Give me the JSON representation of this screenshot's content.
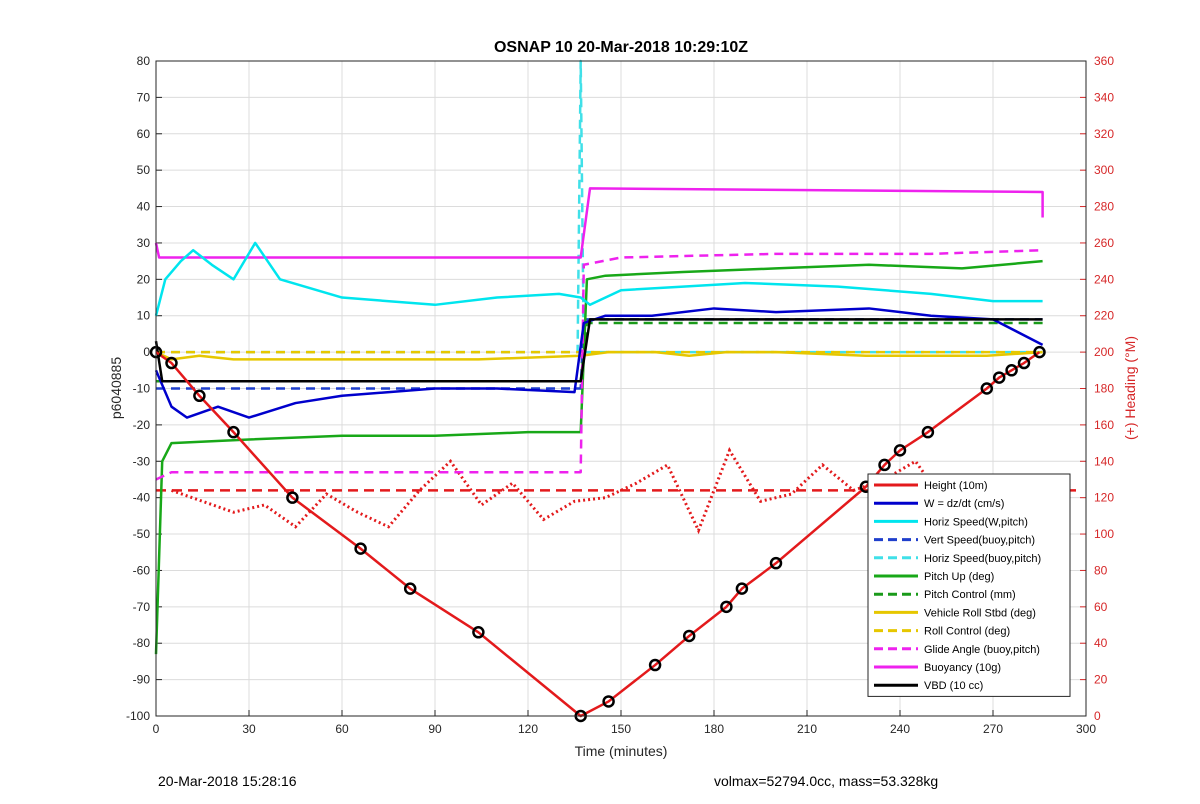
{
  "chart_data": {
    "type": "line",
    "title": "OSNAP 10 20-Mar-2018 10:29:10Z",
    "xlabel": "Time (minutes)",
    "ylabel": "p6040885",
    "y2label": "(+) Heading (°M)",
    "xlim": [
      0,
      300
    ],
    "ylim": [
      -100,
      80
    ],
    "y2lim": [
      0,
      360
    ],
    "xticks": [
      "0",
      "30",
      "60",
      "90",
      "120",
      "150",
      "180",
      "210",
      "240",
      "270",
      "300"
    ],
    "yticks": [
      "-100",
      "-90",
      "-80",
      "-70",
      "-60",
      "-50",
      "-40",
      "-30",
      "-20",
      "-10",
      "0",
      "10",
      "20",
      "30",
      "40",
      "50",
      "60",
      "70",
      "80"
    ],
    "y2ticks": [
      "0",
      "20",
      "40",
      "60",
      "80",
      "100",
      "120",
      "140",
      "160",
      "180",
      "200",
      "220",
      "240",
      "260",
      "280",
      "300",
      "320",
      "340",
      "360"
    ],
    "grid": true,
    "legend_position": "bottom-right",
    "series": [
      {
        "name": "Height (10m)",
        "color": "#e31a1c",
        "style": "solid",
        "axis": "left",
        "x": [
          0,
          5,
          14,
          25,
          44,
          66,
          82,
          104,
          137,
          146,
          161,
          172,
          184,
          189,
          200,
          229,
          235,
          240,
          249,
          268,
          272,
          276,
          280,
          285
        ],
        "y": [
          0,
          -3,
          -12,
          -22,
          -40,
          -54,
          -65,
          -77,
          -100,
          -96,
          -86,
          -78,
          -70,
          -65,
          -58,
          -37,
          -31,
          -27,
          -22,
          -10,
          -7,
          -5,
          -3,
          0
        ]
      },
      {
        "name": "W = dz/dt (cm/s)",
        "color": "#0000cc",
        "style": "solid",
        "axis": "left",
        "x": [
          0,
          5,
          10,
          20,
          30,
          45,
          60,
          90,
          110,
          135,
          138,
          145,
          160,
          180,
          200,
          230,
          250,
          270,
          286
        ],
        "y": [
          -5,
          -15,
          -18,
          -15,
          -18,
          -14,
          -12,
          -10,
          -10,
          -11,
          8,
          10,
          10,
          12,
          11,
          12,
          10,
          9,
          2
        ]
      },
      {
        "name": "Horiz Speed(W,pitch)",
        "color": "#00e5ee",
        "style": "solid",
        "axis": "left",
        "x": [
          0,
          3,
          8,
          12,
          18,
          25,
          32,
          40,
          60,
          90,
          110,
          130,
          137,
          140,
          150,
          170,
          190,
          220,
          250,
          270,
          286
        ],
        "y": [
          10,
          20,
          25,
          28,
          24,
          20,
          30,
          20,
          15,
          13,
          15,
          16,
          15,
          13,
          17,
          18,
          19,
          18,
          16,
          14,
          14
        ]
      },
      {
        "name": "Vert Speed(buoy,pitch)",
        "color": "#1f3fcc",
        "style": "dashed",
        "axis": "left",
        "x": [
          0,
          137,
          138,
          286
        ],
        "y": [
          -10,
          -10,
          9,
          9
        ]
      },
      {
        "name": "Horiz Speed(buoy,pitch)",
        "color": "#40e0e8",
        "style": "dashed",
        "axis": "left",
        "x": [
          0,
          136,
          137,
          138,
          286
        ],
        "y": [
          0,
          0,
          80,
          0,
          0
        ]
      },
      {
        "name": "Pitch Up (deg)",
        "color": "#18a818",
        "style": "solid",
        "axis": "left",
        "x": [
          0,
          2,
          5,
          30,
          60,
          90,
          120,
          137,
          139,
          145,
          170,
          200,
          230,
          260,
          286
        ],
        "y": [
          -83,
          -30,
          -25,
          -24,
          -23,
          -23,
          -22,
          -22,
          20,
          21,
          22,
          23,
          24,
          23,
          25
        ]
      },
      {
        "name": "Pitch Control (mm)",
        "color": "#1a9a1a",
        "style": "dashed",
        "axis": "left",
        "x": [
          0,
          137,
          139,
          286
        ],
        "y": [
          -8,
          -8,
          8,
          8
        ]
      },
      {
        "name": "Vehicle Roll Stbd (deg)",
        "color": "#e6c700",
        "style": "solid",
        "axis": "left",
        "x": [
          0,
          5,
          14,
          25,
          44,
          66,
          82,
          104,
          137,
          146,
          161,
          172,
          184,
          200,
          229,
          249,
          268,
          286
        ],
        "y": [
          0,
          -2,
          -1,
          -2,
          -2,
          -2,
          -2,
          -2,
          -1,
          0,
          0,
          -1,
          0,
          0,
          -1,
          -1,
          -1,
          0
        ]
      },
      {
        "name": "Roll Control (deg)",
        "color": "#e6c700",
        "style": "dashed",
        "axis": "left",
        "x": [
          0,
          137,
          286
        ],
        "y": [
          0,
          0,
          0
        ]
      },
      {
        "name": "Glide Angle (buoy,pitch)",
        "color": "#ee22ee",
        "style": "dashed",
        "axis": "left",
        "x": [
          0,
          5,
          60,
          120,
          137,
          138,
          150,
          200,
          250,
          286
        ],
        "y": [
          -35,
          -33,
          -33,
          -33,
          -33,
          24,
          26,
          27,
          27,
          28
        ]
      },
      {
        "name": "Buoyancy (10g)",
        "color": "#ee22ee",
        "style": "solid",
        "axis": "left",
        "x": [
          0,
          1,
          137,
          140,
          286,
          286
        ],
        "y": [
          30,
          26,
          26,
          45,
          44,
          37
        ]
      },
      {
        "name": "VBD (10 cc)",
        "color": "#000000",
        "style": "solid",
        "axis": "left",
        "x": [
          0,
          2,
          137,
          140,
          286
        ],
        "y": [
          3,
          -8,
          -8,
          9,
          9
        ]
      }
    ],
    "heading_series": {
      "color": "#e31a1c",
      "axis": "right",
      "x": [
        5,
        15,
        25,
        35,
        45,
        55,
        65,
        75,
        85,
        95,
        105,
        115,
        125,
        135,
        145,
        155,
        165,
        175,
        185,
        195,
        205,
        215,
        225,
        235,
        245,
        255,
        265,
        275,
        285
      ],
      "y": [
        124,
        118,
        112,
        116,
        104,
        122,
        112,
        104,
        124,
        140,
        116,
        128,
        108,
        118,
        120,
        128,
        138,
        102,
        146,
        118,
        122,
        138,
        124,
        130,
        140,
        116,
        104,
        118,
        106
      ]
    },
    "heading_ref": {
      "color": "#e31a1c",
      "style": "dashed",
      "y2": 124
    }
  },
  "footer": {
    "left": "20-Mar-2018 15:28:16",
    "right": "volmax=52794.0cc, mass=53.328kg"
  }
}
